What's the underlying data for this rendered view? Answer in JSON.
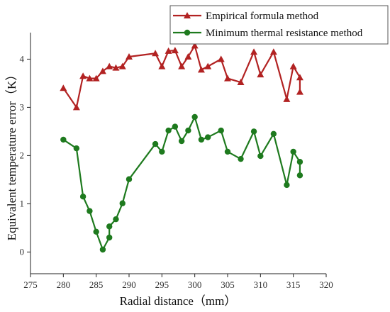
{
  "chart_data": {
    "type": "line",
    "xlabel": "Radial distance（mm）",
    "ylabel": "Equivalent temperature error（K）",
    "xlim": [
      275,
      320
    ],
    "ylim": [
      -0.45,
      4.55
    ],
    "xticks": [
      275,
      280,
      285,
      290,
      295,
      300,
      305,
      310,
      315,
      320
    ],
    "yticks": [
      0,
      1,
      2,
      3,
      4
    ],
    "grid": false,
    "legend_position": "top-right",
    "series": [
      {
        "name": "Empirical formula method",
        "color": "#b22222",
        "marker": "triangle",
        "x": [
          280,
          282,
          283,
          284,
          285,
          286,
          287,
          288,
          289,
          290,
          294,
          295,
          296,
          297,
          298,
          299,
          300,
          301,
          302,
          304,
          305,
          307,
          309,
          310,
          312,
          314,
          315,
          316,
          316
        ],
        "y": [
          3.4,
          3.0,
          3.65,
          3.6,
          3.6,
          3.75,
          3.85,
          3.82,
          3.85,
          4.05,
          4.12,
          3.85,
          4.17,
          4.18,
          3.85,
          4.05,
          4.28,
          3.78,
          3.85,
          4.0,
          3.6,
          3.52,
          4.15,
          3.68,
          4.15,
          3.17,
          3.85,
          3.62,
          3.32
        ]
      },
      {
        "name": "Minimum thermal resistance method",
        "color": "#1e7a1e",
        "marker": "circle",
        "x": [
          280,
          282,
          283,
          284,
          285,
          286,
          287,
          287,
          288,
          289,
          290,
          294,
          295,
          296,
          297,
          298,
          299,
          300,
          301,
          302,
          304,
          305,
          307,
          309,
          310,
          312,
          314,
          315,
          316,
          316
        ],
        "y": [
          2.33,
          2.15,
          1.15,
          0.85,
          0.42,
          0.05,
          0.3,
          0.53,
          0.68,
          1.01,
          1.51,
          2.24,
          2.08,
          2.52,
          2.6,
          2.3,
          2.52,
          2.8,
          2.33,
          2.38,
          2.52,
          2.08,
          1.93,
          2.5,
          1.99,
          2.45,
          1.39,
          2.08,
          1.87,
          1.59
        ]
      }
    ]
  }
}
